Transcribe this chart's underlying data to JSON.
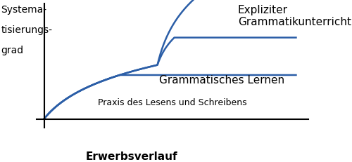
{
  "background_color": "#ffffff",
  "line_color": "#2b5ea7",
  "line_width": 1.8,
  "ylabel_lines": [
    "Systema-",
    "tisierungs-",
    "grad"
  ],
  "xlabel": "Erwerbsverlauf",
  "curve1_label": "Praxis des Lesens und Schreibens",
  "curve2_label": "Grammatisches Lernen",
  "curve3_label": "Expliziter\nGrammatikunterricht",
  "font_size_curve_labels": 10,
  "font_size_axis_label": 10,
  "font_size_ylabel": 10
}
